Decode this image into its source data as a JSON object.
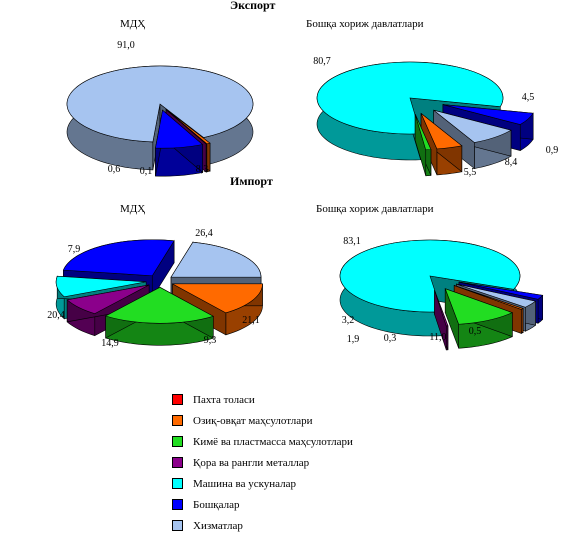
{
  "headings": {
    "export": "Экспорт",
    "import": "Импорт"
  },
  "legend": [
    {
      "label": "Пахта толаси",
      "color": "#ff0000"
    },
    {
      "label": "Озиқ-овқат маҳсулотлари",
      "color": "#ff6a00"
    },
    {
      "label": "Кимё ва пластмасса маҳсулотлари",
      "color": "#22dd22"
    },
    {
      "label": "Қора ва рангли металлар",
      "color": "#8b008b"
    },
    {
      "label": "Машина ва ускуналар",
      "color": "#00ffff"
    },
    {
      "label": "Бошқалар",
      "color": "#0000ff"
    },
    {
      "label": "Хизматлар",
      "color": "#a6c4f0"
    }
  ],
  "chart_data": [
    {
      "type": "pie",
      "group": "Экспорт",
      "title": "МДҲ",
      "categories": [
        "Пахта толаси",
        "Озиқ-овқат маҳсулотлари",
        "Кимё ва пластмасса маҳсулотлари",
        "Қора ва рангли металлар",
        "Машина ва ускуналар",
        "Бошқалар",
        "Хизматлар"
      ],
      "values": [
        0,
        0.6,
        0,
        0.1,
        0,
        8.3,
        91.0
      ],
      "data_labels": {
        "Озиқ-овқат маҳсулотлари": "0,6",
        "Қора ва рангли металлар": "0,1",
        "Бошқалар": "8,3",
        "Хизматлар": "91,0"
      }
    },
    {
      "type": "pie",
      "group": "Экспорт",
      "title": "Бошқа хориж давлатлари",
      "categories": [
        "Пахта толаси",
        "Озиқ-овқат маҳсулотлари",
        "Кимё ва пластмасса маҳсулотлари",
        "Қора ва рангли металлар",
        "Машина ва ускуналар",
        "Бошқалар",
        "Хизматлар"
      ],
      "values": [
        0,
        4.5,
        0.9,
        0,
        80.7,
        5.5,
        8.4
      ],
      "data_labels": {
        "Озиқ-овқат маҳсулотлари": "4,5",
        "Кимё ва пластмасса маҳсулотлари": "0,9",
        "Машина ва ускуналар": "80,7",
        "Бошқалар": "5,5",
        "Хизматлар": "8,4"
      }
    },
    {
      "type": "pie",
      "group": "Импорт",
      "title": "МДҲ",
      "categories": [
        "Пахта толаси",
        "Озиқ-овқат маҳсулотлари",
        "Кимё ва пластмасса маҳсулотлари",
        "Қора ва рангли металлар",
        "Машина ва ускуналар",
        "Бошқалар",
        "Хизматлар"
      ],
      "values": [
        0,
        14.9,
        20.4,
        7.9,
        9.3,
        26.4,
        21.1
      ],
      "data_labels": {
        "Озиқ-овқат маҳсулотлари": "14,9",
        "Кимё ва пластмасса маҳсулотлари": "20,4",
        "Қора ва рангли металлар": "7,9",
        "Машина ва ускуналар": "9,3",
        "Бошқалар": "26,4",
        "Хизматлар": "21,1"
      }
    },
    {
      "type": "pie",
      "group": "Импорт",
      "title": "Бошқа хориж давлатлари",
      "categories": [
        "Пахта толаси",
        "Озиқ-овқат маҳсулотлари",
        "Кимё ва пластмасса маҳсулотлари",
        "Қора ва рангли металлар",
        "Машина ва ускуналар",
        "Бошқалар",
        "Хизматлар"
      ],
      "values": [
        0,
        0.5,
        11.0,
        0.3,
        83.1,
        1.9,
        3.2
      ],
      "data_labels": {
        "Озиқ-овқат маҳсулотлари": "0,5",
        "Кимё ва пластмасса маҳсулотлари": "11,0",
        "Қора ва рангли металлар": "0,3",
        "Машина ва ускуналар": "83,1",
        "Бошқалар": "1,9",
        "Хизматлар": "3,2"
      }
    }
  ]
}
